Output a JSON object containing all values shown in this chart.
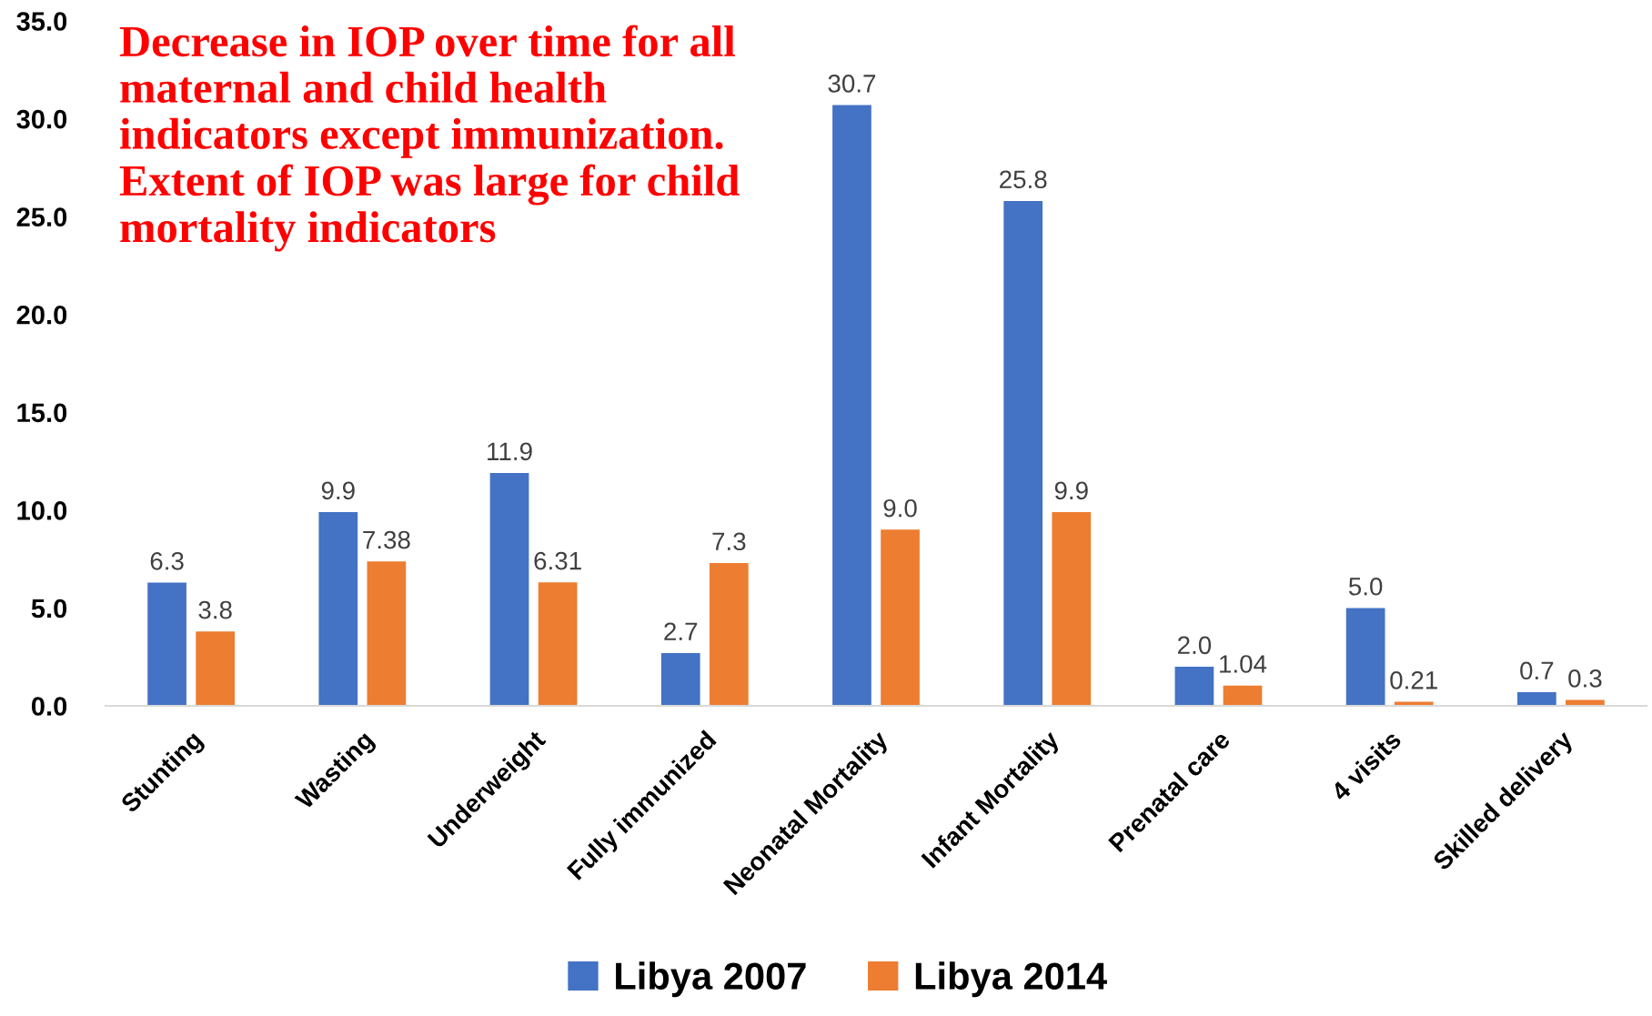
{
  "chart_data": {
    "type": "bar",
    "categories": [
      "Stunting",
      "Wasting",
      "Underweight",
      "Fully immunized",
      "Neonatal Mortality",
      "Infant Mortality",
      "Prenatal care",
      "4 visits",
      "Skilled delivery"
    ],
    "series": [
      {
        "name": "Libya 2007",
        "color": "#4472c4",
        "values": [
          6.3,
          9.9,
          11.9,
          2.7,
          30.7,
          25.8,
          2.0,
          5.0,
          0.7
        ],
        "value_labels": [
          "6.3",
          "9.9",
          "11.9",
          "2.7",
          "30.7",
          "25.8",
          "2.0",
          "5.0",
          "0.7"
        ]
      },
      {
        "name": "Libya 2014",
        "color": "#ed7d31",
        "values": [
          3.8,
          7.38,
          6.31,
          7.3,
          9.0,
          9.9,
          1.04,
          0.21,
          0.3
        ],
        "value_labels": [
          "3.8",
          "7.38",
          "6.31",
          "7.3",
          "9.0",
          "9.9",
          "1.04",
          "0.21",
          "0.3"
        ]
      }
    ],
    "ylim": [
      0,
      35
    ],
    "yticks": [
      {
        "value": 0,
        "label": "0.0"
      },
      {
        "value": 5,
        "label": "5.0"
      },
      {
        "value": 10,
        "label": "10.0"
      },
      {
        "value": 15,
        "label": "15.0"
      },
      {
        "value": 20,
        "label": "20.0"
      },
      {
        "value": 25,
        "label": "25.0"
      },
      {
        "value": 30,
        "label": "30.0"
      },
      {
        "value": 35,
        "label": "35.0"
      }
    ],
    "grid": false,
    "legend": "bottom",
    "annotations": [
      "Decrease in IOP over time for all\nmaternal and child health\nindicators except immunization.\nExtent of IOP was large for child\nmortality indicators"
    ]
  }
}
